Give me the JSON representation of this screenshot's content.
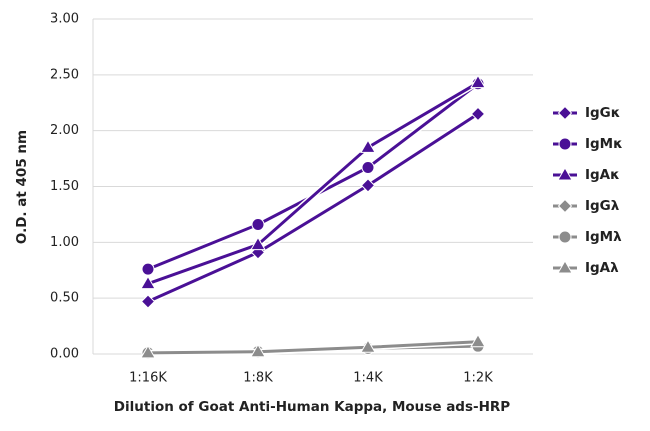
{
  "chart_data": {
    "type": "line",
    "x_label": "Dilution of Goat Anti-Human Kappa, Mouse ads-HRP",
    "y_label": "O.D. at 405 nm",
    "categories": [
      "1:16K",
      "1:8K",
      "1:4K",
      "1:2K"
    ],
    "series": [
      {
        "name": "IgGκ",
        "color": "#4a1096",
        "marker": "diamond",
        "values": [
          0.47,
          0.91,
          1.51,
          2.15
        ]
      },
      {
        "name": "IgMκ",
        "color": "#4a1096",
        "marker": "circle",
        "values": [
          0.76,
          1.16,
          1.67,
          2.42
        ]
      },
      {
        "name": "IgAκ",
        "color": "#4a1096",
        "marker": "triangle",
        "values": [
          0.63,
          0.98,
          1.85,
          2.43
        ]
      },
      {
        "name": "IgGλ",
        "color": "#8c8c8c",
        "marker": "diamond",
        "values": [
          0.01,
          0.02,
          0.05,
          0.09
        ]
      },
      {
        "name": "IgMλ",
        "color": "#8c8c8c",
        "marker": "circle",
        "values": [
          0.01,
          0.02,
          0.05,
          0.07
        ]
      },
      {
        "name": "IgAλ",
        "color": "#8c8c8c",
        "marker": "triangle",
        "values": [
          0.01,
          0.02,
          0.06,
          0.11
        ]
      }
    ],
    "ylim": [
      0,
      3
    ],
    "yticks": [
      {
        "value": 0,
        "label": "0.00"
      },
      {
        "value": 0.5,
        "label": "0.50"
      },
      {
        "value": 1,
        "label": "1.00"
      },
      {
        "value": 1.5,
        "label": "1.50"
      },
      {
        "value": 2,
        "label": "2.00"
      },
      {
        "value": 2.5,
        "label": "2.50"
      },
      {
        "value": 3,
        "label": "3.00"
      }
    ],
    "grid": true,
    "legend": "right"
  }
}
